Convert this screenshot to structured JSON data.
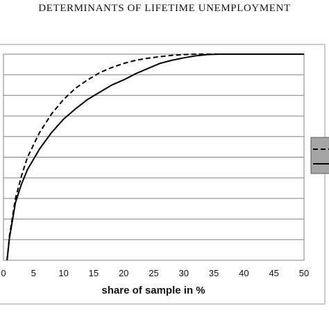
{
  "page": {
    "title": "DETERMINANTS OF LIFETIME UNEMPLOYMENT"
  },
  "chart_data": {
    "type": "line",
    "title": "",
    "xlabel": "share of sample in %",
    "ylabel": "",
    "xlim": [
      0,
      50
    ],
    "x_ticks": [
      "0",
      "5",
      "10",
      "15",
      "20",
      "25",
      "30",
      "35",
      "40",
      "45",
      "50"
    ],
    "grid": true,
    "legend": "right (partially visible, labels cropped)",
    "colors": {
      "line": "#000000",
      "grid": "#808080",
      "legend_bg": "#a6a6a6"
    },
    "series": [
      {
        "style": "dashed",
        "points": [
          [
            0.6,
            0.0
          ],
          [
            1,
            0.12
          ],
          [
            2,
            0.3
          ],
          [
            3,
            0.41
          ],
          [
            4,
            0.5
          ],
          [
            6,
            0.62
          ],
          [
            8,
            0.71
          ],
          [
            10,
            0.78
          ],
          [
            12,
            0.835
          ],
          [
            14,
            0.875
          ],
          [
            16,
            0.91
          ],
          [
            18,
            0.935
          ],
          [
            20,
            0.955
          ],
          [
            22,
            0.97
          ],
          [
            24,
            0.98
          ],
          [
            26,
            0.988
          ],
          [
            28,
            0.994
          ],
          [
            30,
            0.998
          ],
          [
            32,
            1.0
          ],
          [
            50,
            1.0
          ]
        ]
      },
      {
        "style": "solid",
        "points": [
          [
            0.6,
            0.0
          ],
          [
            1,
            0.11
          ],
          [
            2,
            0.28
          ],
          [
            3,
            0.37
          ],
          [
            4,
            0.44
          ],
          [
            6,
            0.54
          ],
          [
            8,
            0.62
          ],
          [
            10,
            0.685
          ],
          [
            12,
            0.735
          ],
          [
            14,
            0.78
          ],
          [
            16,
            0.815
          ],
          [
            18,
            0.85
          ],
          [
            20,
            0.875
          ],
          [
            22,
            0.905
          ],
          [
            24,
            0.93
          ],
          [
            26,
            0.955
          ],
          [
            28,
            0.97
          ],
          [
            30,
            0.982
          ],
          [
            32,
            0.992
          ],
          [
            34,
            0.998
          ],
          [
            36,
            1.0
          ],
          [
            50,
            1.0
          ]
        ]
      }
    ]
  }
}
